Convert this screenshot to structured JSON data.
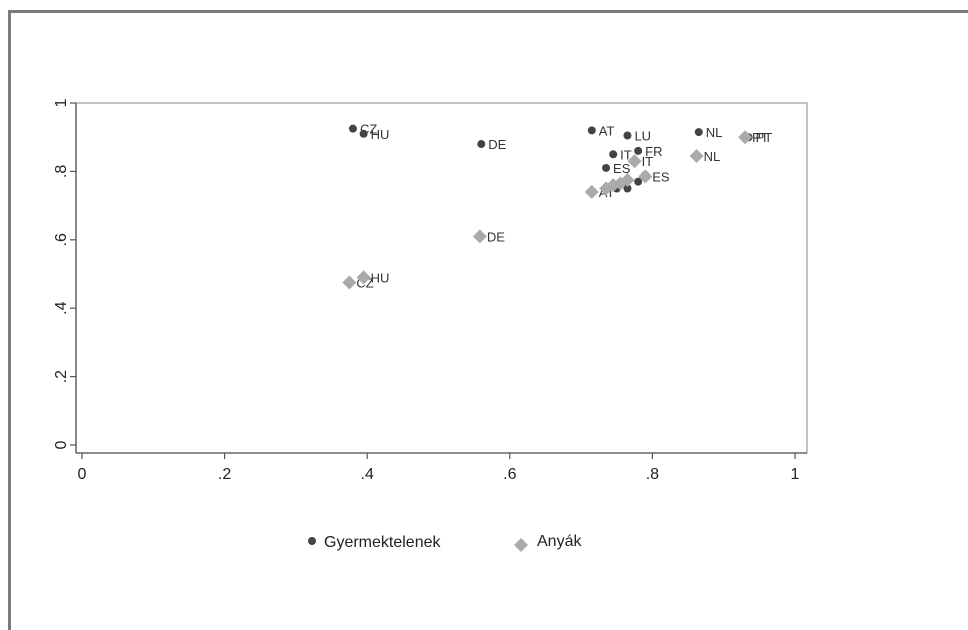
{
  "chart_data": {
    "type": "scatter",
    "title": "",
    "xlabel": "",
    "ylabel": "",
    "xlim": [
      0,
      1
    ],
    "ylim": [
      0,
      1
    ],
    "x_ticks": [
      "0",
      ".2",
      ".4",
      ".6",
      ".8",
      "1"
    ],
    "x_tick_values": [
      0,
      0.2,
      0.4,
      0.6,
      0.8,
      1
    ],
    "y_ticks": [
      "0",
      ".2",
      ".4",
      ".6",
      ".8",
      "1"
    ],
    "y_tick_values": [
      0,
      0.2,
      0.4,
      0.6,
      0.8,
      1
    ],
    "grid": false,
    "legend_position": "bottom",
    "series": [
      {
        "name": "Gyermektelenek",
        "color": "#444444",
        "marker": "circle",
        "points": [
          {
            "label": "CZ",
            "x": 0.38,
            "y": 0.925
          },
          {
            "label": "HU",
            "x": 0.395,
            "y": 0.91
          },
          {
            "label": "DE",
            "x": 0.56,
            "y": 0.88
          },
          {
            "label": "AT",
            "x": 0.715,
            "y": 0.92
          },
          {
            "label": "LU",
            "x": 0.765,
            "y": 0.905
          },
          {
            "label": "FR",
            "x": 0.78,
            "y": 0.86
          },
          {
            "label": "ES",
            "x": 0.735,
            "y": 0.81
          },
          {
            "label": "IT",
            "x": 0.745,
            "y": 0.85
          },
          {
            "label": "NL",
            "x": 0.865,
            "y": 0.915
          },
          {
            "label": "PT",
            "x": 0.935,
            "y": 0.9
          },
          {
            "label": "",
            "x": 0.75,
            "y": 0.75
          },
          {
            "label": "",
            "x": 0.765,
            "y": 0.75
          },
          {
            "label": "",
            "x": 0.78,
            "y": 0.77
          },
          {
            "label": "",
            "x": 0.79,
            "y": 0.79
          }
        ]
      },
      {
        "name": "Anyák",
        "color": "#aaaaaa",
        "marker": "diamond",
        "points": [
          {
            "label": "CZ",
            "x": 0.375,
            "y": 0.475
          },
          {
            "label": "HU",
            "x": 0.395,
            "y": 0.49
          },
          {
            "label": "DE",
            "x": 0.558,
            "y": 0.61
          },
          {
            "label": "IT",
            "x": 0.775,
            "y": 0.83
          },
          {
            "label": "ES",
            "x": 0.79,
            "y": 0.785
          },
          {
            "label": "AT",
            "x": 0.715,
            "y": 0.74
          },
          {
            "label": "NL",
            "x": 0.862,
            "y": 0.845
          },
          {
            "label": "PT",
            "x": 0.93,
            "y": 0.9
          },
          {
            "label": "",
            "x": 0.735,
            "y": 0.75
          },
          {
            "label": "",
            "x": 0.745,
            "y": 0.76
          },
          {
            "label": "",
            "x": 0.755,
            "y": 0.765
          },
          {
            "label": "",
            "x": 0.765,
            "y": 0.775
          }
        ]
      }
    ]
  }
}
